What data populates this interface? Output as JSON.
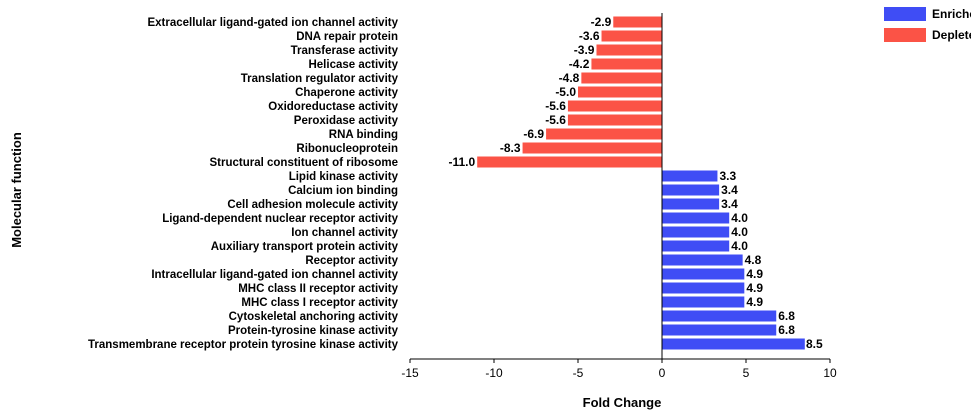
{
  "chart_data": {
    "type": "bar",
    "orientation": "horizontal",
    "xlabel": "Fold Change",
    "ylabel": "Molecular function",
    "xlim": [
      -15,
      10
    ],
    "xticks": [
      -15,
      -10,
      -5,
      0,
      5,
      10
    ],
    "grid": false,
    "legend_position": "top-right",
    "series": [
      {
        "name": "Enriched",
        "color": "#3f4df5"
      },
      {
        "name": "Depleted",
        "color": "#fb5346"
      }
    ],
    "categories": [
      "Extracellular ligand-gated ion channel activity",
      "DNA repair protein",
      "Transferase activity",
      "Helicase activity",
      "Translation regulator activity",
      "Chaperone activity",
      "Oxidoreductase activity",
      "Peroxidase activity",
      "RNA binding",
      "Ribonucleoprotein",
      "Structural constituent of ribosome",
      "Lipid kinase activity",
      "Calcium ion binding",
      "Cell adhesion molecule activity",
      "Ligand-dependent nuclear receptor activity",
      "Ion channel activity",
      "Auxiliary transport protein activity",
      "Receptor activity",
      "Intracellular ligand-gated ion channel activity",
      "MHC class II receptor activity",
      "MHC class I receptor activity",
      "Cytoskeletal anchoring activity",
      "Protein-tyrosine kinase activity",
      "Transmembrane receptor protein tyrosine kinase activity"
    ],
    "values": [
      -2.9,
      -3.6,
      -3.9,
      -4.2,
      -4.8,
      -5.0,
      -5.6,
      -5.6,
      -6.9,
      -8.3,
      -11.0,
      3.3,
      3.4,
      3.4,
      4.0,
      4.0,
      4.0,
      4.8,
      4.9,
      4.9,
      4.9,
      6.8,
      6.8,
      8.5
    ],
    "value_labels": [
      "-2.9",
      "-3.6",
      "-3.9",
      "-4.2",
      "-4.8",
      "-5.0",
      "-5.6",
      "-5.6",
      "-6.9",
      "-8.3",
      "-11.0",
      "3.3",
      "3.4",
      "3.4",
      "4.0",
      "4.0",
      "4.0",
      "4.8",
      "4.9",
      "4.9",
      "4.9",
      "6.8",
      "6.8",
      "8.5"
    ]
  }
}
